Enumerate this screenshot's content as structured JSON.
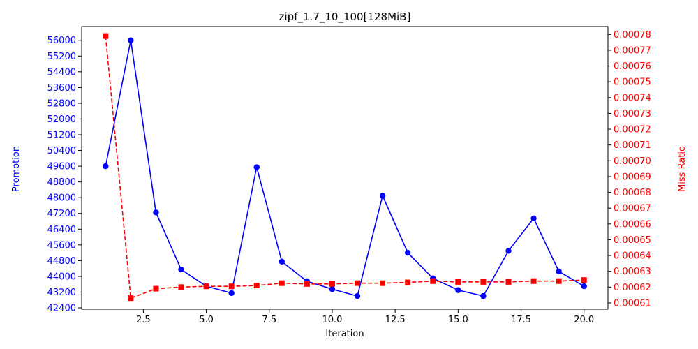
{
  "chart_data": {
    "type": "line",
    "title": "zipf_1.7_10_100[128MiB]",
    "xlabel": "Iteration",
    "xlim": [
      0.05,
      20.95
    ],
    "xticks": [
      2.5,
      5.0,
      7.5,
      10.0,
      12.5,
      15.0,
      17.5,
      20.0
    ],
    "xtick_labels": [
      "2.5",
      "5.0",
      "7.5",
      "10.0",
      "12.5",
      "15.0",
      "17.5",
      "20.0"
    ],
    "x": [
      1,
      2,
      3,
      4,
      5,
      6,
      7,
      8,
      9,
      10,
      11,
      12,
      13,
      14,
      15,
      16,
      17,
      18,
      19,
      20
    ],
    "y_left": {
      "label": "Promotion",
      "color": "#0000ff",
      "ylim": [
        42330,
        56700
      ],
      "ticks": [
        42400,
        43200,
        44000,
        44800,
        45600,
        46400,
        47200,
        48000,
        48800,
        49600,
        50400,
        51200,
        52000,
        52800,
        53600,
        54400,
        55200,
        56000
      ]
    },
    "y_right": {
      "label": "Miss Ratio",
      "color": "#ff0000",
      "ylim": [
        0.000606,
        0.000785
      ],
      "ticks": [
        0.00061,
        0.00062,
        0.00063,
        0.00064,
        0.00065,
        0.00066,
        0.00067,
        0.00068,
        0.00069,
        0.0007,
        0.00071,
        0.00072,
        0.00073,
        0.00074,
        0.00075,
        0.00076,
        0.00077,
        0.00078
      ],
      "tick_labels": [
        "0.00061",
        "0.00062",
        "0.00063",
        "0.00064",
        "0.00065",
        "0.00066",
        "0.00067",
        "0.00068",
        "0.00069",
        "0.00070",
        "0.00071",
        "0.00072",
        "0.00073",
        "0.00074",
        "0.00075",
        "0.00076",
        "0.00077",
        "0.00078"
      ]
    },
    "series": [
      {
        "axis": "left",
        "color": "#0000ff",
        "line_style": "solid",
        "marker": "circle",
        "values": [
          49600,
          56000,
          47250,
          44350,
          43500,
          43150,
          49550,
          44750,
          43750,
          43350,
          43000,
          48100,
          45200,
          43900,
          43300,
          43000,
          45300,
          46950,
          44250,
          43500
        ]
      },
      {
        "axis": "right",
        "color": "#ff0000",
        "line_style": "dashed",
        "marker": "square",
        "values": [
          0.000779,
          0.000613,
          0.000619,
          0.00062,
          0.0006205,
          0.0006205,
          0.000621,
          0.0006225,
          0.000622,
          0.000622,
          0.0006225,
          0.0006225,
          0.000623,
          0.0006238,
          0.0006233,
          0.0006233,
          0.0006233,
          0.0006238,
          0.0006238,
          0.0006245
        ]
      }
    ]
  }
}
